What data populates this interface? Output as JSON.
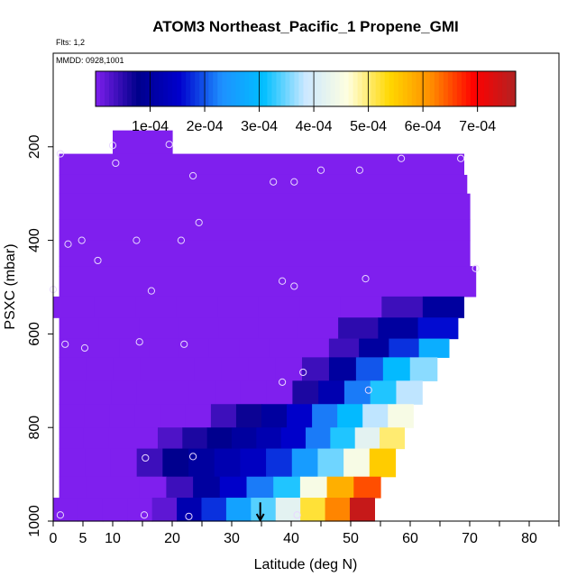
{
  "chart_data": {
    "type": "heatmap",
    "title": "ATOM3 Northeast_Pacific_1 Propene_GMI",
    "subtitle_flights": "Flts: 1,2",
    "subtitle_dates": "MMDD: 0928,1001",
    "xlabel": "Latitude (deg N)",
    "ylabel": "PSXC (mbar)",
    "xlim": [
      0,
      85
    ],
    "ylim": [
      1000,
      0
    ],
    "x_ticks": [
      0,
      5,
      10,
      20,
      30,
      40,
      50,
      60,
      70,
      80
    ],
    "y_ticks": [
      200,
      400,
      600,
      800,
      1000
    ],
    "colorbar": {
      "range": [
        0,
        0.00077
      ],
      "tick_values": [
        0.0001,
        0.0002,
        0.0003,
        0.0004,
        0.0005,
        0.0006,
        0.0007
      ],
      "tick_labels": [
        "1e-04",
        "2e-04",
        "3e-04",
        "4e-04",
        "5e-04",
        "6e-04",
        "7e-04"
      ],
      "colors": [
        "#7f1fee",
        "#00008b",
        "#0000cd",
        "#1e90ff",
        "#00bfff",
        "#cce8ff",
        "#ffffe0",
        "#ffd700",
        "#ff8c00",
        "#ff0000",
        "#b22222"
      ]
    },
    "rows": [
      {
        "p_top": 165,
        "p_bot": 215,
        "lat_start": 10,
        "lat_end": 20,
        "values": [
          0
        ]
      },
      {
        "p_top": 215,
        "p_bot": 260,
        "lat_start": 1,
        "lat_end": 69,
        "values": [
          0
        ]
      },
      {
        "p_top": 260,
        "p_bot": 300,
        "lat_start": 1,
        "lat_end": 69.5,
        "values": [
          0
        ]
      },
      {
        "p_top": 300,
        "p_bot": 355,
        "lat_start": 1,
        "lat_end": 70,
        "values": [
          0
        ]
      },
      {
        "p_top": 355,
        "p_bot": 400,
        "lat_start": 1,
        "lat_end": 70,
        "values": [
          0
        ]
      },
      {
        "p_top": 400,
        "p_bot": 455,
        "lat_start": 1,
        "lat_end": 70,
        "values": [
          0
        ]
      },
      {
        "p_top": 455,
        "p_bot": 520,
        "lat_start": 1,
        "lat_end": 71,
        "values": [
          0
        ]
      },
      {
        "p_top": 520,
        "p_bot": 565,
        "lat_start": 0,
        "lat_end": 69,
        "values": [
          0,
          0,
          0,
          0,
          0,
          0,
          0,
          0,
          4e-05,
          0.0001
        ]
      },
      {
        "p_top": 565,
        "p_bot": 610,
        "lat_start": 1,
        "lat_end": 68,
        "values": [
          0,
          0,
          0,
          0,
          0,
          0,
          0,
          5e-05,
          0.0001,
          0.00016
        ]
      },
      {
        "p_top": 610,
        "p_bot": 650,
        "lat_start": 1,
        "lat_end": 66.5,
        "values": [
          0,
          0,
          0,
          0,
          0,
          0,
          0,
          0,
          0,
          4e-05,
          0.0001,
          0.00018,
          0.00028
        ]
      },
      {
        "p_top": 650,
        "p_bot": 700,
        "lat_start": 1,
        "lat_end": 64.5,
        "values": [
          0,
          0,
          0,
          0,
          0,
          0,
          0,
          0,
          0,
          4e-05,
          0.0001,
          0.0002,
          0.0003,
          0.00036
        ]
      },
      {
        "p_top": 700,
        "p_bot": 750,
        "lat_start": 1,
        "lat_end": 62,
        "values": [
          0,
          0,
          0,
          0,
          0,
          0,
          0,
          0,
          0,
          6e-05,
          0.00012,
          0.00022,
          0.00032,
          0.00038
        ]
      },
      {
        "p_top": 750,
        "p_bot": 800,
        "lat_start": 1,
        "lat_end": 60.5,
        "values": [
          0,
          0,
          0,
          0,
          0,
          0,
          4e-05,
          7e-05,
          0.0001,
          0.00015,
          0.00022,
          0.0003,
          0.00038,
          0.00045
        ]
      },
      {
        "p_top": 800,
        "p_bot": 845,
        "lat_start": 1,
        "lat_end": 59,
        "values": [
          0,
          0,
          0,
          0,
          3e-05,
          6e-05,
          8e-05,
          0.0001,
          0.00012,
          0.00015,
          0.00022,
          0.00032,
          0.00042,
          0.0005
        ]
      },
      {
        "p_top": 845,
        "p_bot": 905,
        "lat_start": 1,
        "lat_end": 57.5,
        "values": [
          0,
          0,
          0,
          4e-05,
          8e-05,
          0.0001,
          0.00012,
          0.00014,
          0.00018,
          0.00025,
          0.00035,
          0.00045,
          0.00055
        ]
      },
      {
        "p_top": 905,
        "p_bot": 950,
        "lat_start": 1,
        "lat_end": 55,
        "values": [
          0,
          0,
          0,
          0,
          4e-05,
          0.0001,
          0.00015,
          0.00022,
          0.00032,
          0.00045,
          0.00058,
          0.00065
        ]
      },
      {
        "p_top": 950,
        "p_bot": 1000,
        "lat_start": 0,
        "lat_end": 54,
        "values": [
          0,
          0,
          0,
          0,
          2e-05,
          0.00012,
          0.00018,
          0.00026,
          0.00034,
          0.00042,
          0.00052,
          0.00062,
          0.00075
        ]
      }
    ],
    "points": [
      {
        "lat": 1.2,
        "p": 987
      },
      {
        "lat": 15.3,
        "p": 987
      },
      {
        "lat": 22.8,
        "p": 990
      },
      {
        "lat": 41,
        "p": 987
      },
      {
        "lat": 1.2,
        "p": 215
      },
      {
        "lat": 10,
        "p": 197
      },
      {
        "lat": 10.5,
        "p": 235
      },
      {
        "lat": 19.5,
        "p": 195
      },
      {
        "lat": 58.5,
        "p": 225
      },
      {
        "lat": 68.5,
        "p": 225
      },
      {
        "lat": 23.5,
        "p": 262
      },
      {
        "lat": 37,
        "p": 275
      },
      {
        "lat": 40.5,
        "p": 275
      },
      {
        "lat": 45,
        "p": 250
      },
      {
        "lat": 51.5,
        "p": 250
      },
      {
        "lat": 24.5,
        "p": 362
      },
      {
        "lat": 2.5,
        "p": 408
      },
      {
        "lat": 4.8,
        "p": 400
      },
      {
        "lat": 7.5,
        "p": 443
      },
      {
        "lat": 14,
        "p": 400
      },
      {
        "lat": 21.5,
        "p": 400
      },
      {
        "lat": 16.5,
        "p": 508
      },
      {
        "lat": 38.5,
        "p": 487
      },
      {
        "lat": 40.5,
        "p": 498
      },
      {
        "lat": 52.5,
        "p": 482
      },
      {
        "lat": 71,
        "p": 460
      },
      {
        "lat": 2,
        "p": 622
      },
      {
        "lat": 5.3,
        "p": 630
      },
      {
        "lat": 14.5,
        "p": 617
      },
      {
        "lat": 22,
        "p": 622
      },
      {
        "lat": 38.5,
        "p": 703
      },
      {
        "lat": 42,
        "p": 682
      },
      {
        "lat": 53,
        "p": 720
      },
      {
        "lat": 15.5,
        "p": 865
      },
      {
        "lat": 23.5,
        "p": 862
      },
      {
        "lat": 0,
        "p": 505
      }
    ],
    "marker_arrow": {
      "lat": 34.8,
      "p_from": 960,
      "p_to": 1000
    }
  }
}
